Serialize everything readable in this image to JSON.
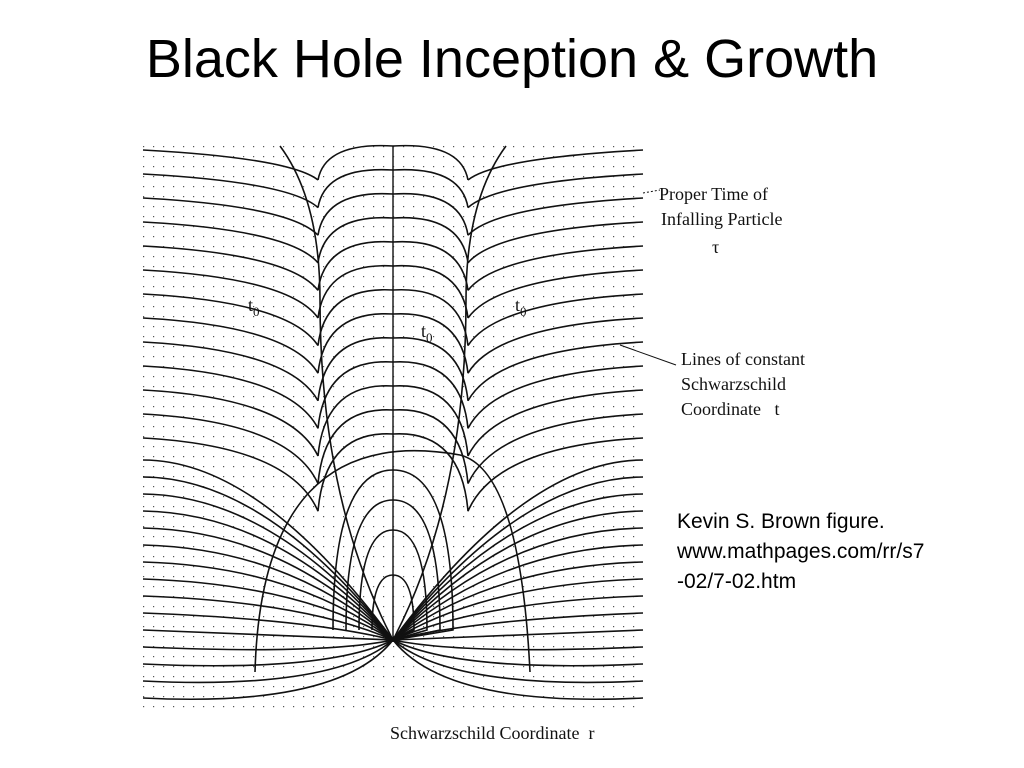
{
  "header": {
    "title": "Black Hole Inception & Growth"
  },
  "figure": {
    "proper_time_label": [
      "Proper Time of",
      "Infalling Particle",
      "τ"
    ],
    "t0_labels": [
      {
        "base": "t",
        "sub": "0"
      },
      {
        "base": "t",
        "sub": "0"
      },
      {
        "base": "t",
        "sub": "0"
      }
    ],
    "constant_t_label": [
      "Lines of constant",
      "Schwarzschild",
      "Coordinate   t"
    ],
    "x_axis_label": "Schwarzschild Coordinate  r"
  },
  "caption": [
    "Kevin S. Brown figure.",
    "www.mathpages.com/rr/s7",
    "-02/7-02.htm"
  ]
}
